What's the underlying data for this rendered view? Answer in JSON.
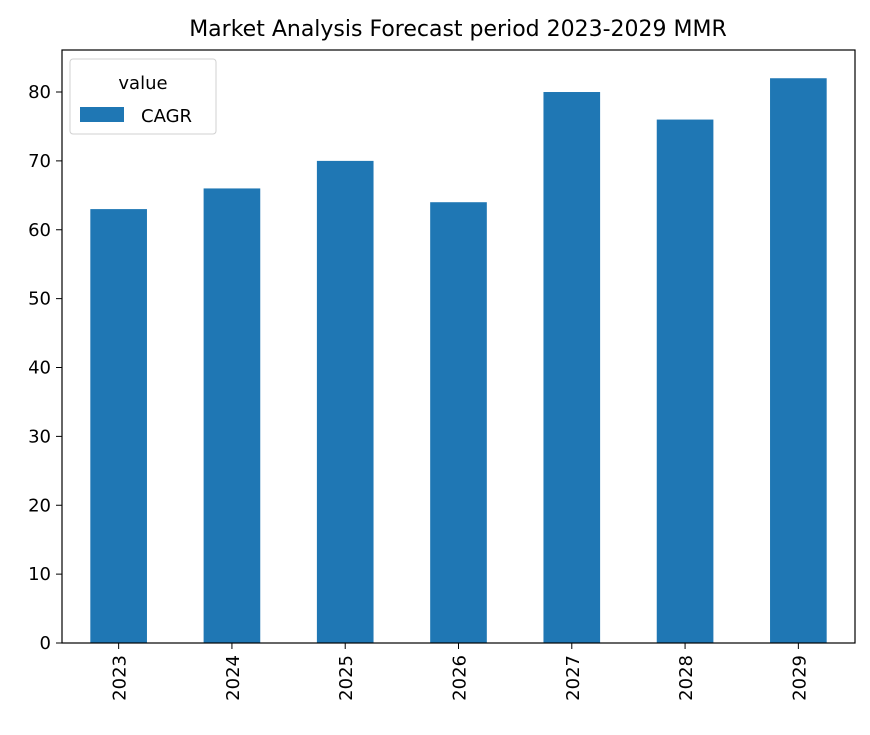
{
  "chart_data": {
    "type": "bar",
    "title": "Market Analysis Forecast period 2023-2029 MMR",
    "categories": [
      "2023",
      "2024",
      "2025",
      "2026",
      "2027",
      "2028",
      "2029"
    ],
    "series": [
      {
        "name": "CAGR",
        "values": [
          63,
          66,
          70,
          64,
          80,
          76,
          82
        ],
        "color": "#1f77b4"
      }
    ],
    "xlabel": "",
    "ylabel": "",
    "ylim": [
      0,
      86.1
    ],
    "yticks": [
      0,
      10,
      20,
      30,
      40,
      50,
      60,
      70,
      80
    ],
    "grid": false,
    "legend": {
      "title": "value",
      "placement": "top-left"
    }
  }
}
